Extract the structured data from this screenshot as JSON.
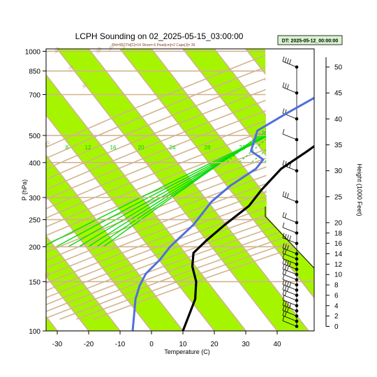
{
  "chart_data": {
    "type": "line",
    "chart_kind": "skew-T log-P sounding",
    "title": "LCPH Sounding on 02_2025-05-15_03:00:00",
    "subtitle": "Pld=957 Tkl[C]=14 Show=-6 Pwat[cm]=2 Cape[J]= 36",
    "dt_label": "DT: 2025-05-12_00:00:00",
    "xlabel": "Temperature (C)",
    "ylabel": "P (hPa)",
    "y2label": "Height (1000 Feet)",
    "xlim": [
      -33,
      47
    ],
    "ylim": [
      1020,
      100
    ],
    "y_scale": "log",
    "x_ticks": [
      "-30",
      "-20",
      "-10",
      "0",
      "10",
      "20",
      "30",
      "40"
    ],
    "y_ticks": [
      "100",
      "150",
      "200",
      "250",
      "300",
      "400",
      "500",
      "700",
      "850",
      "1000"
    ],
    "height_ticks": [
      "0",
      "2",
      "4",
      "6",
      "8",
      "10",
      "12",
      "14",
      "16",
      "18",
      "20",
      "25",
      "30",
      "35",
      "40",
      "45",
      "50"
    ],
    "isotherm_labels": [
      "-80",
      "-70",
      "-60",
      "-50",
      "-40",
      "-30",
      "-20",
      "-10",
      "0",
      "10",
      "20",
      "30"
    ],
    "mixing_ratio_labels": [
      "8",
      "12",
      "16",
      "20",
      "24",
      "28",
      "32"
    ],
    "colors": {
      "temperature": "#000000",
      "dewpoint": "#4f6fdc",
      "band": "#a6f500",
      "isotherm": "#d2b48c",
      "moist_adiabat": "#00dd00",
      "mixing_ratio": "#22cc22",
      "parcel": "#dd0000"
    },
    "series": [
      {
        "role": "temperature",
        "x": [
          20,
          19,
          18,
          19,
          20,
          18,
          16,
          13,
          11,
          8,
          5,
          1,
          0,
          0,
          -3,
          -5,
          -6,
          -3,
          2,
          6,
          10
        ],
        "y": [
          1000,
          980,
          950,
          920,
          880,
          820,
          740,
          660,
          580,
          500,
          440,
          380,
          320,
          280,
          240,
          210,
          190,
          170,
          150,
          130,
          100
        ]
      },
      {
        "role": "dewpoint",
        "x": [
          17,
          16,
          13,
          6,
          2,
          1,
          -1,
          -5,
          -11,
          -16,
          -13,
          -7,
          -7,
          -11,
          -13,
          -13,
          -15,
          -15,
          -16,
          -15,
          -13,
          -6
        ],
        "y": [
          1000,
          970,
          940,
          920,
          880,
          830,
          780,
          700,
          600,
          520,
          440,
          410,
          380,
          330,
          290,
          240,
          200,
          180,
          160,
          145,
          130,
          100
        ]
      }
    ],
    "wind_barb_heights_kft": [
      0,
      1,
      2,
      3,
      4,
      5,
      6,
      7,
      8,
      9,
      10,
      11,
      12,
      13,
      14,
      16,
      18,
      20,
      24,
      30,
      36,
      40,
      45,
      50
    ],
    "legend": "none",
    "grid": true
  }
}
